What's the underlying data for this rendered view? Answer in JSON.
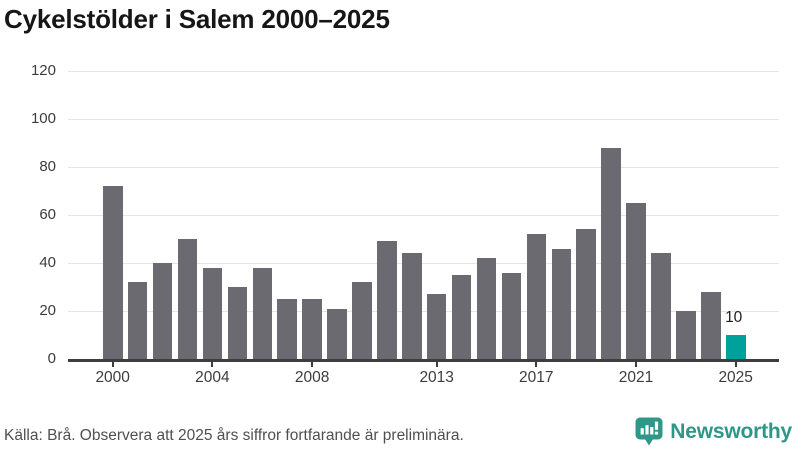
{
  "title": "Cykelstölder i Salem 2000–2025",
  "chart_data": {
    "type": "bar",
    "title": "Cykelstölder i Salem 2000–2025",
    "categories": [
      2000,
      2001,
      2002,
      2003,
      2004,
      2005,
      2006,
      2007,
      2008,
      2009,
      2010,
      2011,
      2012,
      2013,
      2014,
      2015,
      2016,
      2017,
      2018,
      2019,
      2020,
      2021,
      2022,
      2023,
      2024,
      2025
    ],
    "values": [
      72,
      32,
      40,
      50,
      38,
      30,
      38,
      25,
      25,
      21,
      32,
      49,
      44,
      27,
      35,
      42,
      36,
      52,
      46,
      54,
      88,
      65,
      44,
      20,
      28,
      10
    ],
    "xlabel": "",
    "ylabel": "",
    "ylim": [
      0,
      120
    ],
    "yticks": [
      0,
      20,
      40,
      60,
      80,
      100,
      120
    ],
    "xticks": [
      2000,
      2004,
      2008,
      2013,
      2017,
      2021,
      2025
    ],
    "grid": true,
    "legend_position": "none",
    "highlight": {
      "category": 2025,
      "value": 10,
      "label": "10"
    },
    "colors": {
      "bar": "#6a6a70",
      "highlight_bar": "#00a09b",
      "grid": "#e4e4e4",
      "axis": "#3d3d3d",
      "tick_label": "#3d3d3d",
      "title": "#161616"
    }
  },
  "footer": {
    "source_note": "Källa: Brå. Observera att 2025 års siffror fortfarande är preliminära.",
    "brand_name": "Newsworthy",
    "brand_color": "#2f9787"
  }
}
